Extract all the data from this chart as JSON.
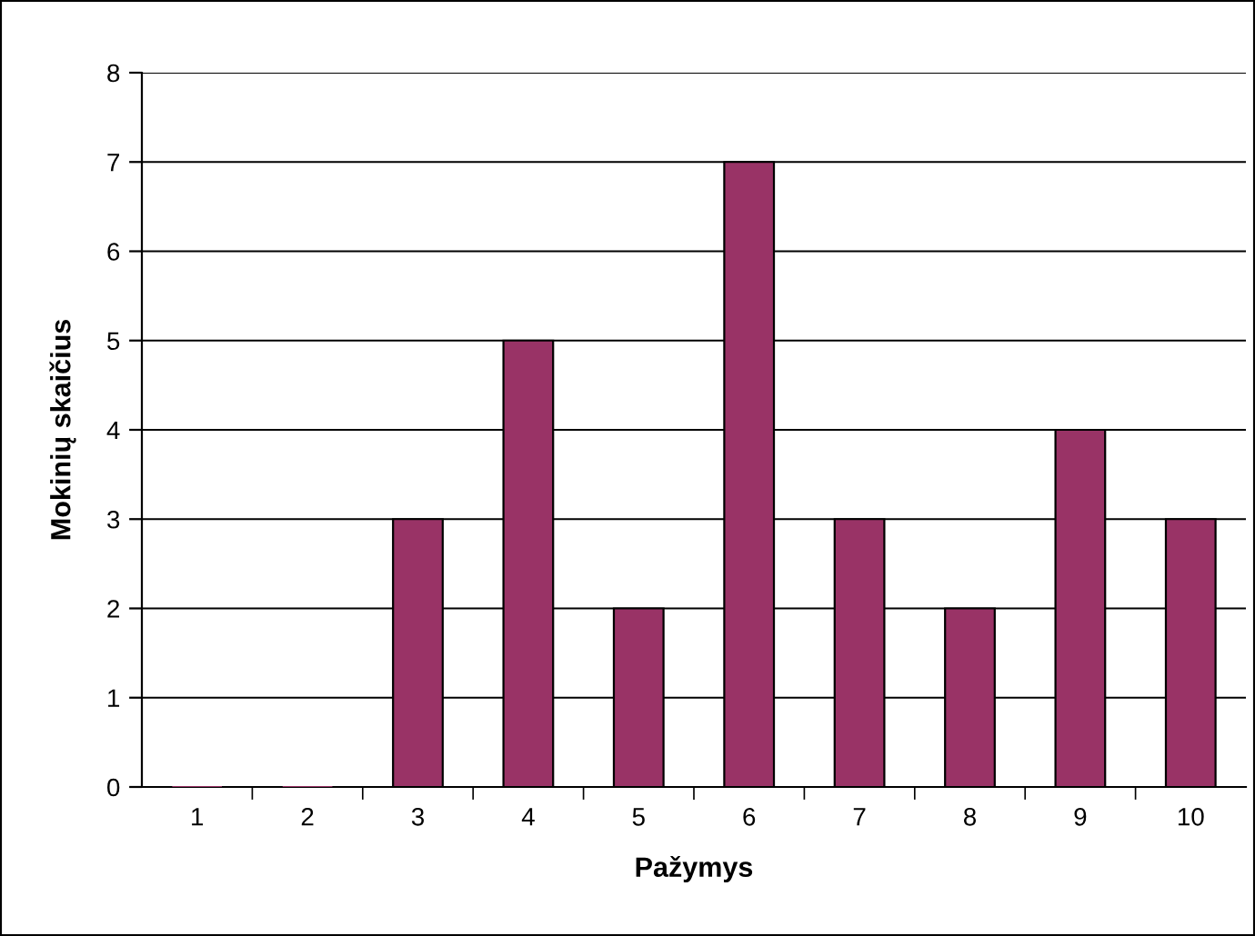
{
  "chart_data": {
    "type": "bar",
    "xlabel": "Pažymys",
    "ylabel": "Mokinių skaičius",
    "categories": [
      "1",
      "2",
      "3",
      "4",
      "5",
      "6",
      "7",
      "8",
      "9",
      "10"
    ],
    "values": [
      0,
      0,
      3,
      5,
      2,
      7,
      3,
      2,
      4,
      3
    ],
    "color": "#993366",
    "ylim": [
      0,
      8
    ],
    "yticks": [
      0,
      1,
      2,
      3,
      4,
      5,
      6,
      7,
      8
    ],
    "grid": "y",
    "legend": false
  }
}
